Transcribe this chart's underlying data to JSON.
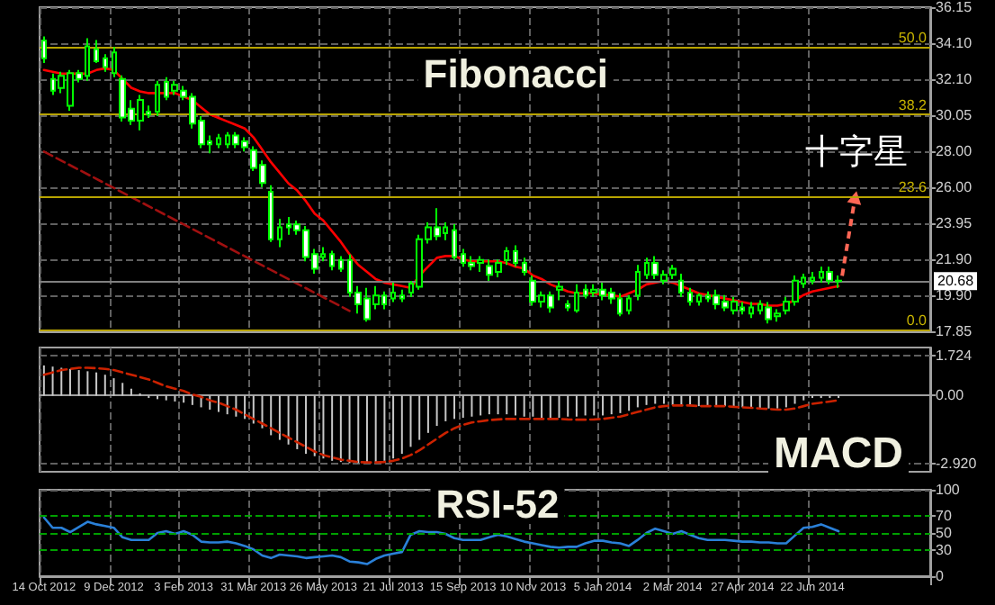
{
  "chart_data": [
    {
      "type": "candlestick",
      "title": "Fibonacci",
      "annotations": [
        "十字星",
        {
          "text": "50.0",
          "y": 33.9
        },
        {
          "text": "38.2",
          "y": 30.1
        },
        {
          "text": "23.6",
          "y": 25.45
        },
        {
          "text": "0.0",
          "y": 17.95
        }
      ],
      "categories": [
        null,
        null,
        null,
        null,
        null,
        null,
        null,
        null,
        null,
        null,
        null,
        null,
        null,
        null,
        null,
        null,
        null,
        null,
        null,
        null,
        null,
        null,
        null,
        null,
        null,
        null,
        null,
        null,
        null,
        null,
        null,
        null,
        null,
        null,
        null,
        null,
        null,
        null,
        null,
        null,
        null,
        null,
        null,
        null,
        null,
        null,
        null,
        null,
        null,
        null,
        null,
        null,
        null,
        null,
        null,
        null,
        null,
        null,
        null,
        null,
        null,
        null,
        null,
        null,
        null,
        null,
        null,
        null,
        null,
        null,
        null,
        null,
        null,
        null,
        null,
        null,
        null,
        null,
        null,
        null,
        null,
        null,
        null,
        null,
        null,
        null,
        null,
        null,
        null,
        null,
        null,
        null,
        null,
        null,
        null,
        null,
        null,
        null,
        null,
        null,
        null,
        null
      ],
      "series": [
        {
          "color": "#00ff00",
          "ohlc": [
            [
              34.27,
              34.5,
              33.0,
              33.27
            ],
            [
              32.1,
              32.4,
              31.2,
              31.43
            ],
            [
              31.59,
              32.5,
              31.3,
              32.27
            ],
            [
              30.59,
              32.6,
              30.3,
              32.43
            ],
            [
              32.43,
              32.6,
              31.9,
              32.1
            ],
            [
              32.27,
              34.4,
              32.0,
              33.94
            ],
            [
              33.77,
              34.3,
              33.0,
              33.1
            ],
            [
              33.27,
              33.5,
              32.5,
              32.77
            ],
            [
              32.43,
              33.9,
              32.2,
              33.6
            ],
            [
              32.1,
              32.3,
              29.7,
              29.92
            ],
            [
              30.42,
              30.9,
              29.5,
              29.75
            ],
            [
              29.75,
              31.2,
              29.2,
              30.92
            ],
            [
              30.25,
              30.6,
              29.9,
              30.09
            ],
            [
              30.25,
              32.0,
              30.0,
              31.76
            ],
            [
              31.93,
              32.2,
              30.9,
              31.09
            ],
            [
              31.43,
              32.0,
              31.2,
              31.76
            ],
            [
              31.43,
              31.7,
              30.9,
              31.09
            ],
            [
              31.09,
              31.3,
              29.3,
              29.58
            ],
            [
              29.75,
              30.0,
              28.2,
              28.41
            ],
            [
              28.58,
              28.9,
              27.9,
              28.41
            ],
            [
              28.41,
              29.0,
              28.2,
              28.75
            ],
            [
              28.41,
              29.1,
              28.2,
              28.91
            ],
            [
              28.91,
              29.1,
              28.2,
              28.41
            ],
            [
              28.58,
              28.8,
              28.0,
              28.24
            ],
            [
              28.08,
              28.3,
              26.9,
              27.07
            ],
            [
              27.24,
              27.5,
              26.0,
              26.23
            ],
            [
              25.73,
              26.1,
              22.9,
              23.05
            ],
            [
              23.05,
              24.2,
              22.6,
              23.72
            ],
            [
              23.89,
              24.3,
              23.3,
              23.72
            ],
            [
              23.89,
              24.1,
              23.3,
              23.55
            ],
            [
              23.55,
              23.8,
              21.8,
              22.05
            ],
            [
              22.21,
              22.5,
              21.1,
              21.38
            ],
            [
              22.05,
              22.6,
              21.8,
              22.21
            ],
            [
              22.21,
              22.4,
              21.3,
              21.54
            ],
            [
              21.88,
              22.1,
              21.2,
              21.38
            ],
            [
              21.88,
              22.2,
              19.8,
              20.04
            ],
            [
              20.04,
              20.4,
              18.86,
              19.37
            ],
            [
              19.7,
              20.3,
              18.4,
              18.53
            ],
            [
              19.37,
              20.4,
              19.1,
              19.87
            ],
            [
              19.87,
              20.1,
              19.1,
              19.37
            ],
            [
              19.7,
              20.6,
              19.5,
              20.04
            ],
            [
              19.87,
              20.2,
              19.5,
              19.7
            ],
            [
              20.04,
              20.7,
              19.8,
              20.54
            ],
            [
              20.37,
              23.3,
              20.2,
              23.05
            ],
            [
              23.05,
              24.0,
              22.8,
              23.72
            ],
            [
              23.72,
              24.8,
              23.0,
              23.22
            ],
            [
              23.39,
              24.0,
              23.0,
              23.72
            ],
            [
              23.55,
              23.9,
              21.9,
              22.05
            ],
            [
              22.21,
              22.5,
              21.5,
              21.71
            ],
            [
              21.71,
              22.1,
              21.3,
              21.54
            ],
            [
              21.71,
              22.1,
              21.2,
              21.88
            ],
            [
              21.54,
              21.9,
              20.7,
              21.04
            ],
            [
              21.21,
              21.9,
              20.9,
              21.71
            ],
            [
              21.88,
              22.6,
              21.6,
              22.38
            ],
            [
              22.38,
              22.7,
              21.5,
              21.71
            ],
            [
              21.71,
              22.0,
              21.0,
              21.21
            ],
            [
              20.71,
              21.0,
              19.3,
              19.53
            ],
            [
              19.53,
              20.1,
              19.2,
              19.87
            ],
            [
              19.87,
              20.1,
              18.9,
              19.2
            ],
            [
              20.2,
              20.7,
              19.6,
              20.37
            ],
            [
              19.37,
              19.6,
              19.0,
              19.2
            ],
            [
              19.03,
              20.5,
              18.9,
              20.04
            ],
            [
              20.2,
              20.5,
              19.7,
              19.87
            ],
            [
              20.04,
              20.5,
              19.8,
              20.2
            ],
            [
              20.2,
              20.6,
              19.6,
              19.87
            ],
            [
              20.04,
              20.3,
              19.4,
              19.7
            ],
            [
              19.7,
              20.0,
              18.7,
              18.86
            ],
            [
              19.03,
              19.9,
              18.8,
              19.7
            ],
            [
              19.87,
              21.6,
              19.6,
              21.21
            ],
            [
              21.04,
              22.0,
              20.8,
              21.71
            ],
            [
              21.71,
              22.1,
              20.8,
              21.04
            ],
            [
              20.71,
              21.3,
              20.5,
              21.04
            ],
            [
              21.04,
              21.6,
              20.8,
              21.38
            ],
            [
              20.71,
              21.1,
              19.8,
              20.04
            ],
            [
              20.04,
              20.3,
              19.3,
              19.53
            ],
            [
              19.53,
              20.0,
              19.3,
              19.87
            ],
            [
              19.87,
              20.1,
              19.5,
              19.7
            ],
            [
              19.87,
              20.2,
              19.1,
              19.37
            ],
            [
              19.53,
              19.9,
              19.0,
              19.2
            ],
            [
              19.03,
              19.8,
              18.8,
              19.53
            ],
            [
              19.2,
              19.5,
              18.8,
              19.03
            ],
            [
              18.86,
              19.5,
              18.6,
              19.2
            ],
            [
              19.03,
              19.6,
              18.8,
              19.37
            ],
            [
              19.2,
              19.5,
              18.3,
              18.53
            ],
            [
              18.7,
              19.1,
              18.4,
              18.86
            ],
            [
              19.03,
              19.8,
              18.8,
              19.53
            ],
            [
              19.53,
              21.0,
              19.3,
              20.71
            ],
            [
              20.54,
              21.1,
              20.3,
              20.87
            ],
            [
              20.71,
              21.2,
              20.5,
              20.87
            ],
            [
              20.87,
              21.5,
              20.6,
              21.21
            ],
            [
              21.21,
              21.5,
              20.5,
              20.71
            ],
            [
              20.71,
              21.0,
              20.3,
              20.68
            ],
            null,
            null,
            null,
            null,
            null,
            null,
            null,
            null,
            null,
            null
          ]
        },
        {
          "type": "line",
          "color": "#ff0000",
          "values": [
            32.6,
            32.5,
            32.4,
            32.4,
            32.4,
            32.4,
            32.6,
            32.7,
            32.6,
            32.1,
            31.6,
            31.4,
            31.3,
            31.3,
            31.3,
            31.3,
            31.1,
            30.9,
            30.5,
            30.1,
            29.9,
            29.7,
            29.5,
            29.3,
            28.8,
            28.1,
            27.4,
            26.8,
            26.2,
            25.8,
            25.2,
            24.5,
            24.1,
            23.5,
            22.9,
            22.2,
            21.6,
            21.2,
            20.8,
            20.6,
            20.5,
            20.4,
            20.3,
            21.0,
            21.5,
            22.0,
            22.1,
            22.1,
            21.9,
            21.8,
            21.8,
            21.8,
            21.8,
            21.7,
            21.5,
            21.4,
            21.0,
            20.8,
            20.5,
            20.3,
            20.1,
            20.0,
            20.0,
            20.0,
            19.9,
            19.9,
            19.8,
            20.0,
            20.2,
            20.5,
            20.6,
            20.7,
            20.6,
            20.4,
            20.2,
            20.0,
            19.9,
            19.8,
            19.7,
            19.6,
            19.5,
            19.4,
            19.4,
            19.3,
            19.3,
            19.4,
            19.6,
            19.9,
            20.1,
            20.2,
            20.3,
            20.4,
            null,
            null,
            null,
            null,
            null,
            null,
            null,
            null,
            null,
            null
          ]
        },
        {
          "type": "line",
          "color": "#a01010",
          "line_style": "dashed",
          "values": [
            28.0,
            null,
            null,
            null,
            null,
            null,
            null,
            null,
            null,
            null,
            null,
            null,
            null,
            null,
            null,
            null,
            null,
            null,
            null,
            null,
            null,
            null,
            null,
            null,
            null,
            null,
            null,
            null,
            null,
            null,
            null,
            null,
            null,
            null,
            null,
            19.0,
            null,
            null,
            null,
            null,
            null,
            null,
            null,
            null,
            null,
            null,
            null,
            null,
            null,
            null,
            null,
            null,
            null,
            null,
            null,
            null,
            null,
            null,
            null,
            null,
            null,
            null,
            null,
            null,
            null,
            null,
            null,
            null,
            null,
            null,
            null,
            null,
            null,
            null,
            null,
            null,
            null,
            null,
            null,
            null,
            null,
            null,
            null,
            null,
            null,
            null,
            null,
            null,
            null,
            null,
            null,
            null,
            null,
            null,
            null,
            null,
            null,
            null,
            null,
            null,
            null,
            null
          ]
        }
      ],
      "ylim": [
        17.85,
        36.15
      ],
      "yticks": [
        {
          "value": 17.85,
          "label": "17.85"
        },
        {
          "value": 19.9,
          "label": "19.90"
        },
        {
          "value": 21.9,
          "label": "21.90"
        },
        {
          "value": 23.95,
          "label": "23.95"
        },
        {
          "value": 26,
          "label": "26.00"
        },
        {
          "value": 28,
          "label": "28.00"
        },
        {
          "value": 30.05,
          "label": "30.05"
        },
        {
          "value": 32.1,
          "label": "32.10"
        },
        {
          "value": 34.1,
          "label": "34.10"
        },
        {
          "value": 36.15,
          "label": "36.15"
        }
      ],
      "ref_lines": [
        {
          "axis": "y",
          "value": 33.9,
          "color": "#b8a400"
        },
        {
          "axis": "y",
          "value": 30.1,
          "color": "#b8a400"
        },
        {
          "axis": "y",
          "value": 25.45,
          "color": "#b8a400"
        },
        {
          "axis": "y",
          "value": 17.95,
          "color": "#b8a400"
        },
        {
          "axis": "y",
          "value": 20.68,
          "label": "20.68",
          "color": "#808080"
        }
      ],
      "grid": true,
      "marker": "none",
      "tick_labels": "y"
    },
    {
      "type": "bar",
      "title": "MACD",
      "categories": [
        null,
        null,
        null,
        null,
        null,
        null,
        null,
        null,
        null,
        null,
        null,
        null,
        null,
        null,
        null,
        null,
        null,
        null,
        null,
        null,
        null,
        null,
        null,
        null,
        null,
        null,
        null,
        null,
        null,
        null,
        null,
        null,
        null,
        null,
        null,
        null,
        null,
        null,
        null,
        null,
        null,
        null,
        null,
        null,
        null,
        null,
        null,
        null,
        null,
        null,
        null,
        null,
        null,
        null,
        null,
        null,
        null,
        null,
        null,
        null,
        null,
        null,
        null,
        null,
        null,
        null,
        null,
        null,
        null,
        null,
        null,
        null,
        null,
        null,
        null,
        null,
        null,
        null,
        null,
        null,
        null,
        null,
        null,
        null,
        null,
        null,
        null,
        null,
        null,
        null,
        null,
        null,
        null,
        null,
        null,
        null,
        null,
        null,
        null,
        null,
        null,
        null
      ],
      "series": [
        {
          "color": "#c8c8c8",
          "values": [
            1.3,
            1.25,
            1.2,
            1.15,
            1.1,
            1.05,
            1.0,
            0.9,
            0.75,
            0.55,
            0.3,
            0.1,
            -0.1,
            -0.15,
            -0.2,
            -0.25,
            -0.3,
            -0.4,
            -0.5,
            -0.6,
            -0.7,
            -0.8,
            -0.9,
            -1.0,
            -1.2,
            -1.4,
            -1.7,
            -1.9,
            -2.1,
            -2.3,
            -2.5,
            -2.6,
            -2.7,
            -2.8,
            -2.85,
            -2.9,
            -2.9,
            -2.9,
            -2.85,
            -2.8,
            -2.7,
            -2.5,
            -2.2,
            -1.9,
            -1.6,
            -1.3,
            -1.1,
            -1.0,
            -0.95,
            -0.9,
            -0.85,
            -0.8,
            -0.8,
            -0.8,
            -0.85,
            -0.9,
            -0.9,
            -0.95,
            -0.95,
            -0.95,
            -0.9,
            -0.9,
            -0.85,
            -0.85,
            -0.85,
            -0.8,
            -0.75,
            -0.65,
            -0.5,
            -0.4,
            -0.35,
            -0.35,
            -0.4,
            -0.45,
            -0.45,
            -0.45,
            -0.45,
            -0.45,
            -0.45,
            -0.45,
            -0.5,
            -0.5,
            -0.55,
            -0.55,
            -0.55,
            -0.5,
            -0.35,
            -0.2,
            -0.1,
            -0.1,
            -0.1,
            -0.1,
            null,
            null,
            null,
            null,
            null,
            null,
            null,
            null,
            null,
            null
          ]
        },
        {
          "type": "line",
          "color": "#cc2200",
          "line_style": "dashed",
          "values": [
            0.9,
            1.0,
            1.1,
            1.15,
            1.2,
            1.2,
            1.18,
            1.15,
            1.1,
            1.0,
            0.9,
            0.8,
            0.7,
            0.55,
            0.4,
            0.3,
            0.2,
            0.05,
            -0.05,
            -0.2,
            -0.3,
            -0.45,
            -0.6,
            -0.8,
            -1.0,
            -1.2,
            -1.4,
            -1.6,
            -1.8,
            -2.0,
            -2.2,
            -2.4,
            -2.55,
            -2.65,
            -2.75,
            -2.8,
            -2.85,
            -2.87,
            -2.87,
            -2.85,
            -2.8,
            -2.7,
            -2.55,
            -2.35,
            -2.1,
            -1.85,
            -1.6,
            -1.4,
            -1.25,
            -1.15,
            -1.1,
            -1.05,
            -1.02,
            -1.0,
            -1.0,
            -1.0,
            -1.0,
            -1.0,
            -1.0,
            -1.0,
            -1.02,
            -1.03,
            -1.03,
            -1.02,
            -1.0,
            -0.95,
            -0.9,
            -0.8,
            -0.7,
            -0.6,
            -0.5,
            -0.45,
            -0.42,
            -0.42,
            -0.42,
            -0.45,
            -0.45,
            -0.45,
            -0.45,
            -0.48,
            -0.5,
            -0.52,
            -0.55,
            -0.57,
            -0.6,
            -0.6,
            -0.55,
            -0.45,
            -0.35,
            -0.3,
            -0.25,
            -0.2,
            null,
            null,
            null,
            null,
            null,
            null,
            null,
            null,
            null,
            null
          ]
        }
      ],
      "ylim": [
        -3.27,
        2.07
      ],
      "yticks": [
        {
          "value": 1.724,
          "label": "1.724"
        },
        {
          "value": 0,
          "label": "0.00"
        },
        {
          "value": -2.92,
          "label": "-2.920"
        }
      ],
      "grid": true,
      "marker": "none",
      "tick_labels": "y"
    },
    {
      "type": "line",
      "title": "RSI-52",
      "categories": [
        "14 Oct 2012",
        null,
        null,
        null,
        null,
        null,
        null,
        null,
        "9 Dec 2012",
        null,
        null,
        null,
        null,
        null,
        null,
        null,
        "3 Feb 2013",
        null,
        null,
        null,
        null,
        null,
        null,
        null,
        "31 Mar 2013",
        null,
        null,
        null,
        null,
        null,
        null,
        null,
        "26 May 2013",
        null,
        null,
        null,
        null,
        null,
        null,
        null,
        "21 Jul 2013",
        null,
        null,
        null,
        null,
        null,
        null,
        null,
        "15 Sep 2013",
        null,
        null,
        null,
        null,
        null,
        null,
        null,
        "10 Nov 2013",
        null,
        null,
        null,
        null,
        null,
        null,
        null,
        "5 Jan 2014",
        null,
        null,
        null,
        null,
        null,
        null,
        null,
        "2 Mar 2014",
        null,
        null,
        null,
        null,
        null,
        null,
        null,
        "27 Apr 2014",
        null,
        null,
        null,
        null,
        null,
        null,
        null,
        "22 Jun 2014",
        null,
        null,
        null,
        null,
        null,
        null,
        null,
        null,
        null,
        null,
        null,
        null,
        null
      ],
      "series": [
        {
          "color": "#2a80d8",
          "values": [
            68,
            56,
            56,
            51,
            57,
            63,
            60,
            58,
            56,
            45,
            42,
            42,
            42,
            50,
            52,
            49,
            52,
            48,
            40,
            39,
            39,
            40,
            38,
            35,
            31,
            24,
            21,
            25,
            24,
            23,
            21,
            22,
            23,
            24,
            22,
            17,
            16,
            14,
            20,
            24,
            26,
            28,
            48,
            52,
            51,
            51,
            49,
            44,
            42,
            42,
            42,
            45,
            48,
            46,
            43,
            40,
            38,
            36,
            34,
            33,
            34,
            34,
            38,
            41,
            41,
            39,
            38,
            35,
            42,
            50,
            55,
            52,
            49,
            52,
            48,
            44,
            42,
            42,
            42,
            41,
            40,
            40,
            39,
            39,
            38,
            38,
            47,
            56,
            57,
            60,
            56,
            52,
            null,
            null,
            null,
            null,
            null,
            null,
            null,
            null,
            null,
            null
          ]
        }
      ],
      "ylim": [
        0,
        100
      ],
      "yticks": [
        0,
        30,
        50,
        70,
        100
      ],
      "ref_lines": [
        {
          "axis": "y",
          "value": 70,
          "color": "#00a000",
          "line_style": "dashed"
        },
        {
          "axis": "y",
          "value": 50,
          "color": "#00a000",
          "line_style": "dashed"
        },
        {
          "axis": "y",
          "value": 30,
          "color": "#00a000",
          "line_style": "dashed"
        }
      ],
      "grid": true,
      "marker": "none"
    }
  ]
}
